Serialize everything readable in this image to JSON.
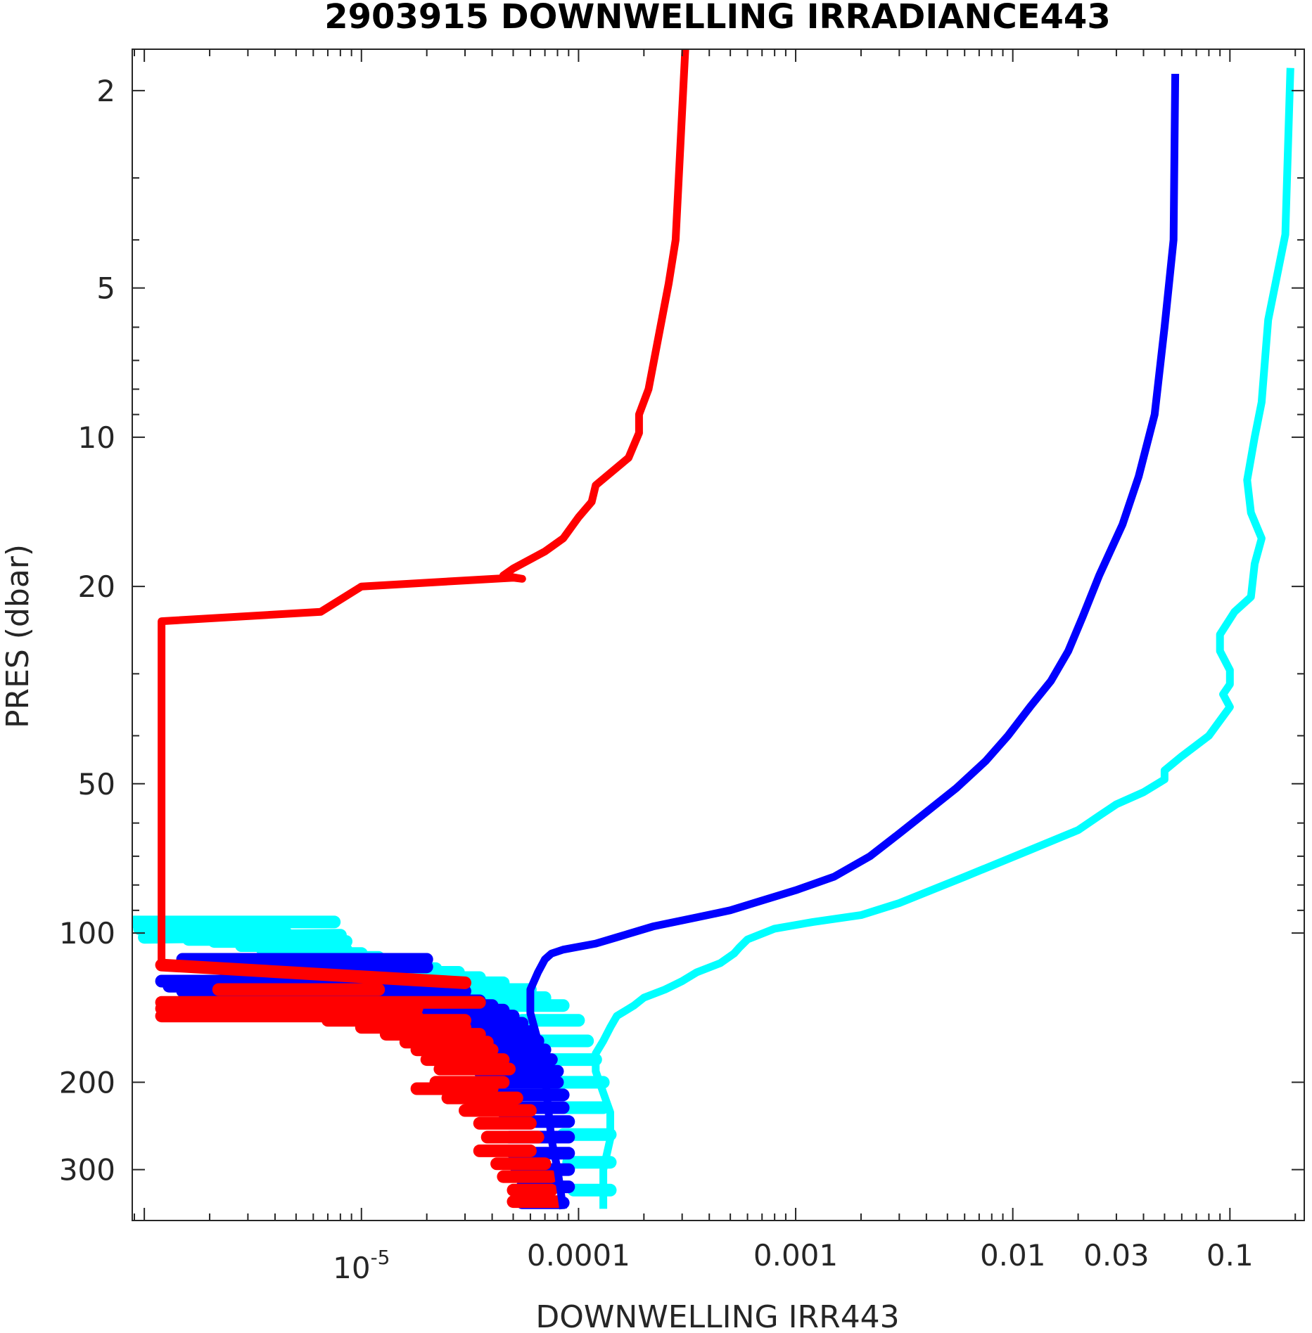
{
  "chart_data": {
    "type": "line",
    "title": "2903915  DOWNWELLING IRRADIANCE443",
    "xlabel": "DOWNWELLING IRR443",
    "ylabel": "PRES (dbar)",
    "xscale": "log",
    "yscale": "log",
    "y_reversed": true,
    "xlim": [
      8.8e-07,
      0.22
    ],
    "ylim": [
      1.65,
      380
    ],
    "grid": false,
    "x_ticks": [
      {
        "value": 1e-05,
        "label": "10",
        "sup": "-5"
      },
      {
        "value": 0.0001,
        "label": "0.0001"
      },
      {
        "value": 0.001,
        "label": "0.001"
      },
      {
        "value": 0.01,
        "label": "0.01"
      },
      {
        "value": 0.03,
        "label": "0.03"
      },
      {
        "value": 0.1,
        "label": "0.1"
      }
    ],
    "y_ticks": [
      {
        "value": 2,
        "label": "2"
      },
      {
        "value": 5,
        "label": "5"
      },
      {
        "value": 10,
        "label": "10"
      },
      {
        "value": 20,
        "label": "20"
      },
      {
        "value": 50,
        "label": "50"
      },
      {
        "value": 100,
        "label": "100"
      },
      {
        "value": 200,
        "label": "200"
      },
      {
        "value": 300,
        "label": "300"
      }
    ],
    "series": [
      {
        "color": "#00ffff",
        "points": [
          [
            0.19,
            1.8
          ],
          [
            0.18,
            3.9
          ],
          [
            0.15,
            5.8
          ],
          [
            0.14,
            8.5
          ],
          [
            0.13,
            10
          ],
          [
            0.12,
            12.2
          ],
          [
            0.125,
            14.2
          ],
          [
            0.14,
            16
          ],
          [
            0.13,
            18
          ],
          [
            0.125,
            21
          ],
          [
            0.105,
            22.5
          ],
          [
            0.09,
            25
          ],
          [
            0.09,
            27
          ],
          [
            0.1,
            29.5
          ],
          [
            0.1,
            31.5
          ],
          [
            0.093,
            33
          ],
          [
            0.1,
            35
          ],
          [
            0.08,
            40
          ],
          [
            0.06,
            44
          ],
          [
            0.05,
            47
          ],
          [
            0.05,
            49
          ],
          [
            0.04,
            52
          ],
          [
            0.03,
            55
          ],
          [
            0.025,
            58
          ],
          [
            0.02,
            62
          ],
          [
            0.012,
            68
          ],
          [
            0.006,
            77
          ],
          [
            0.003,
            87
          ],
          [
            0.002,
            92
          ],
          [
            0.0012,
            95
          ],
          [
            0.0008,
            98
          ],
          [
            0.0006,
            103
          ],
          [
            0.00055,
            107
          ],
          [
            0.00052,
            110
          ],
          [
            0.00045,
            115
          ],
          [
            0.00035,
            120
          ],
          [
            0.0003,
            125
          ],
          [
            0.00025,
            130
          ],
          [
            0.0002,
            135
          ],
          [
            0.00018,
            140
          ],
          [
            0.00015,
            147
          ],
          [
            0.00014,
            155
          ],
          [
            0.00013,
            165
          ],
          [
            0.00012,
            175
          ],
          [
            0.00012,
            190
          ],
          [
            0.00013,
            210
          ],
          [
            0.00014,
            230
          ],
          [
            0.00014,
            260
          ],
          [
            0.00013,
            300
          ],
          [
            0.00013,
            360
          ]
        ]
      },
      {
        "color": "#0000ff",
        "points": [
          [
            0.056,
            1.85
          ],
          [
            0.055,
            4
          ],
          [
            0.05,
            6
          ],
          [
            0.045,
            9
          ],
          [
            0.038,
            12
          ],
          [
            0.032,
            15
          ],
          [
            0.025,
            19
          ],
          [
            0.021,
            23
          ],
          [
            0.018,
            27
          ],
          [
            0.015,
            31
          ],
          [
            0.012,
            35
          ],
          [
            0.0095,
            40
          ],
          [
            0.0075,
            45
          ],
          [
            0.0055,
            51
          ],
          [
            0.004,
            57
          ],
          [
            0.003,
            63
          ],
          [
            0.0022,
            70
          ],
          [
            0.0015,
            77
          ],
          [
            0.001,
            82
          ],
          [
            0.0007,
            86
          ],
          [
            0.0005,
            90
          ],
          [
            0.00035,
            93
          ],
          [
            0.00022,
            97
          ],
          [
            0.00015,
            102
          ],
          [
            0.00012,
            105
          ],
          [
            8.5e-05,
            108
          ],
          [
            7.5e-05,
            110
          ],
          [
            7e-05,
            113
          ],
          [
            6.5e-05,
            120
          ],
          [
            6e-05,
            130
          ],
          [
            6e-05,
            145
          ],
          [
            6.5e-05,
            165
          ],
          [
            7e-05,
            190
          ],
          [
            7.2e-05,
            220
          ],
          [
            7.5e-05,
            260
          ],
          [
            8e-05,
            300
          ],
          [
            8.5e-05,
            360
          ]
        ]
      },
      {
        "color": "#ff0000",
        "points": [
          [
            0.00031,
            1.65
          ],
          [
            0.00028,
            4.0
          ],
          [
            0.00026,
            4.9
          ],
          [
            0.00023,
            6.5
          ],
          [
            0.00021,
            8
          ],
          [
            0.00019,
            9
          ],
          [
            0.00019,
            9.8
          ],
          [
            0.00017,
            11
          ],
          [
            0.00012,
            12.5
          ],
          [
            0.000115,
            13.5
          ],
          [
            0.0001,
            14.5
          ],
          [
            8.5e-05,
            16
          ],
          [
            7e-05,
            17
          ],
          [
            5e-05,
            18.4
          ],
          [
            4.5e-05,
            19
          ],
          [
            5.5e-05,
            19.3
          ],
          [
            5e-05,
            19.2
          ],
          [
            1e-05,
            20
          ],
          [
            6.5e-06,
            22.5
          ],
          [
            1.2e-06,
            23.5
          ],
          [
            1.2e-06,
            50
          ],
          [
            1.2e-06,
            116
          ]
        ]
      }
    ],
    "deep_noise": [
      {
        "color": "#00ffff",
        "segments": [
          [
            9e-07,
            95,
            7.5e-06,
            95
          ],
          [
            9.5e-07,
            98,
            3e-06,
            98
          ],
          [
            1.5e-06,
            100,
            4.5e-06,
            100
          ],
          [
            1e-06,
            102,
            8e-06,
            101
          ],
          [
            1.6e-06,
            103,
            4.5e-06,
            103
          ],
          [
            2.1e-06,
            104,
            8.5e-06,
            104
          ],
          [
            2.8e-06,
            106,
            8e-06,
            106
          ],
          [
            3.5e-06,
            108,
            8.5e-06,
            108
          ],
          [
            4e-06,
            110,
            1e-05,
            110
          ],
          [
            5.5e-06,
            112,
            1.2e-05,
            112
          ],
          [
            7e-06,
            114,
            1.5e-05,
            114
          ],
          [
            9e-06,
            116,
            1.8e-05,
            116
          ],
          [
            1.1e-05,
            118,
            2.2e-05,
            118
          ],
          [
            1.4e-05,
            120,
            2.8e-05,
            120
          ],
          [
            1.8e-05,
            123,
            3.5e-05,
            123
          ],
          [
            2.4e-05,
            126,
            4.5e-05,
            126
          ],
          [
            3e-05,
            130,
            6e-05,
            130
          ],
          [
            3.8e-05,
            135,
            7e-05,
            135
          ],
          [
            4.5e-05,
            140,
            8.5e-05,
            140
          ],
          [
            5.5e-05,
            150,
            0.0001,
            150
          ],
          [
            6.5e-05,
            165,
            0.00011,
            165
          ],
          [
            7e-05,
            180,
            0.00012,
            180
          ],
          [
            7.5e-05,
            200,
            0.00013,
            200
          ],
          [
            8e-05,
            225,
            0.00013,
            225
          ],
          [
            8.5e-05,
            255,
            0.00014,
            255
          ],
          [
            9e-05,
            290,
            0.00014,
            290
          ],
          [
            9.5e-05,
            330,
            0.00014,
            330
          ]
        ]
      },
      {
        "color": "#0000ff",
        "segments": [
          [
            1.5e-06,
            113,
            2e-05,
            113
          ],
          [
            1.8e-06,
            117,
            2e-05,
            117
          ],
          [
            1.2e-06,
            125,
            1.2e-05,
            125
          ],
          [
            1.3e-06,
            128,
            2.2e-05,
            128
          ],
          [
            1.5e-06,
            131,
            3e-05,
            131
          ],
          [
            2e-06,
            134,
            1.2e-05,
            134
          ],
          [
            4.5e-06,
            137,
            3.5e-05,
            137
          ],
          [
            6e-06,
            140,
            4e-05,
            140
          ],
          [
            8e-06,
            143,
            4.5e-05,
            143
          ],
          [
            1e-05,
            147,
            5e-05,
            147
          ],
          [
            1.2e-05,
            152,
            5.5e-05,
            152
          ],
          [
            1.5e-05,
            158,
            6e-05,
            158
          ],
          [
            2e-05,
            165,
            6.5e-05,
            165
          ],
          [
            2.5e-05,
            172,
            7e-05,
            172
          ],
          [
            3e-05,
            180,
            7.5e-05,
            180
          ],
          [
            3.5e-05,
            190,
            8e-05,
            190
          ],
          [
            3.8e-05,
            200,
            8e-05,
            200
          ],
          [
            4e-05,
            212,
            8.5e-05,
            212
          ],
          [
            4.2e-05,
            225,
            8.5e-05,
            225
          ],
          [
            4.5e-05,
            240,
            9e-05,
            240
          ],
          [
            4.8e-05,
            258,
            9e-05,
            258
          ],
          [
            5e-05,
            278,
            9e-05,
            278
          ],
          [
            5.2e-05,
            300,
            9e-05,
            300
          ],
          [
            5.5e-05,
            325,
            9e-05,
            325
          ],
          [
            5.5e-05,
            350,
            8.5e-05,
            350
          ]
        ]
      },
      {
        "color": "#ff0000",
        "segments": [
          [
            1.2e-06,
            116,
            3e-05,
            126
          ],
          [
            2.2e-06,
            130,
            1.2e-05,
            130
          ],
          [
            1.2e-06,
            138,
            3.5e-05,
            138
          ],
          [
            1.2e-06,
            142,
            1.8e-05,
            142
          ],
          [
            1.2e-06,
            147,
            1.8e-05,
            147
          ],
          [
            7e-06,
            150,
            3e-05,
            150
          ],
          [
            1e-05,
            155,
            3e-05,
            155
          ],
          [
            1.3e-05,
            160,
            3.5e-05,
            160
          ],
          [
            1.6e-05,
            166,
            3.8e-05,
            166
          ],
          [
            1.8e-05,
            172,
            4e-05,
            172
          ],
          [
            2e-05,
            180,
            4.5e-05,
            180
          ],
          [
            2.3e-05,
            188,
            4.8e-05,
            188
          ],
          [
            2.2e-05,
            200,
            4.5e-05,
            200
          ],
          [
            1.8e-05,
            206,
            4e-05,
            206
          ],
          [
            2.5e-05,
            215,
            5.2e-05,
            215
          ],
          [
            3e-05,
            228,
            6e-05,
            228
          ],
          [
            3.5e-05,
            242,
            6e-05,
            242
          ],
          [
            3.8e-05,
            258,
            6.5e-05,
            258
          ],
          [
            3.5e-05,
            275,
            6e-05,
            275
          ],
          [
            4.2e-05,
            292,
            7e-05,
            292
          ],
          [
            4.5e-05,
            310,
            7.5e-05,
            310
          ],
          [
            5e-05,
            330,
            7.5e-05,
            330
          ],
          [
            5e-05,
            348,
            8e-05,
            348
          ]
        ]
      }
    ]
  }
}
